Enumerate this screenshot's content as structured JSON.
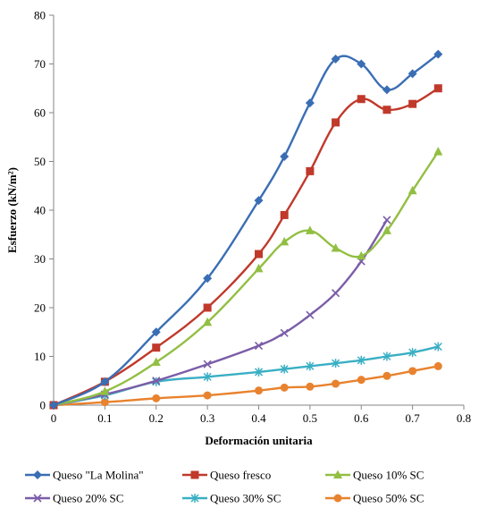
{
  "chart_data": {
    "type": "line",
    "xlabel": "Deformación unitaria",
    "ylabel": "Esfuerzo (kN/m²)",
    "xlim": [
      0,
      0.8
    ],
    "ylim": [
      0,
      80
    ],
    "xticks": [
      "0",
      "0.1",
      "0.2",
      "0.3",
      "0.4",
      "0.5",
      "0.6",
      "0.7",
      "0.8"
    ],
    "yticks": [
      "0",
      "10",
      "20",
      "30",
      "40",
      "50",
      "60",
      "70",
      "80"
    ],
    "grid": false,
    "legend_position": "bottom",
    "series": [
      {
        "name": "Queso \"La Molina\"",
        "color": "#3A6EB4",
        "marker": "diamond",
        "x": [
          0,
          0.1,
          0.2,
          0.3,
          0.4,
          0.45,
          0.5,
          0.55,
          0.6,
          0.65,
          0.7,
          0.75
        ],
        "y": [
          0,
          4.8,
          15,
          26,
          42,
          51,
          62,
          71,
          70,
          64.7,
          68,
          72
        ]
      },
      {
        "name": "Queso fresco",
        "color": "#C0392B",
        "marker": "square",
        "x": [
          0,
          0.1,
          0.2,
          0.3,
          0.4,
          0.45,
          0.5,
          0.55,
          0.6,
          0.65,
          0.7,
          0.75
        ],
        "y": [
          0,
          4.8,
          11.8,
          20,
          31,
          39,
          48,
          58,
          62.8,
          60.6,
          61.8,
          65
        ]
      },
      {
        "name": "Queso 10% SC",
        "color": "#92BF42",
        "marker": "triangle",
        "x": [
          0,
          0.1,
          0.2,
          0.3,
          0.4,
          0.45,
          0.5,
          0.55,
          0.6,
          0.65,
          0.7,
          0.75
        ],
        "y": [
          0,
          2.8,
          8.8,
          17,
          28,
          33.5,
          35.8,
          32.2,
          30.6,
          35.8,
          44,
          52
        ]
      },
      {
        "name": "Queso 20% SC",
        "color": "#7B5DA8",
        "marker": "x",
        "x": [
          0,
          0.1,
          0.2,
          0.3,
          0.4,
          0.45,
          0.5,
          0.55,
          0.6,
          0.65
        ],
        "y": [
          0,
          2.2,
          5,
          8.4,
          12.2,
          14.8,
          18.5,
          23,
          29.5,
          38
        ]
      },
      {
        "name": "Queso 30% SC",
        "color": "#3AAFC4",
        "marker": "star",
        "x": [
          0,
          0.1,
          0.2,
          0.3,
          0.4,
          0.45,
          0.5,
          0.55,
          0.6,
          0.65,
          0.7,
          0.75
        ],
        "y": [
          0,
          2,
          4.8,
          5.8,
          6.8,
          7.4,
          8,
          8.6,
          9.2,
          10,
          10.8,
          12
        ]
      },
      {
        "name": "Queso 50% SC",
        "color": "#E8822E",
        "marker": "circle",
        "x": [
          0,
          0.1,
          0.2,
          0.3,
          0.4,
          0.45,
          0.5,
          0.55,
          0.6,
          0.65,
          0.7,
          0.75
        ],
        "y": [
          0,
          0.6,
          1.4,
          2,
          3,
          3.6,
          3.8,
          4.4,
          5.2,
          6,
          7,
          8
        ]
      }
    ]
  }
}
